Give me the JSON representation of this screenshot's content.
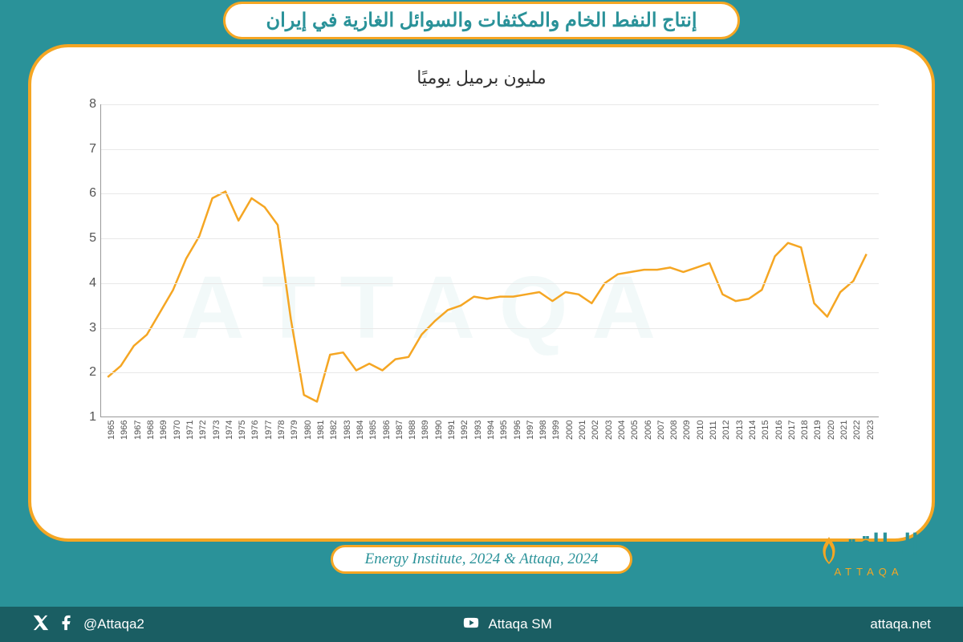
{
  "header": {
    "title": "إنتاج النفط الخام والمكثفات والسوائل الغازية في إيران"
  },
  "chart": {
    "type": "line",
    "subtitle": "مليون برميل يوميًا",
    "line_color": "#f5a623",
    "line_width": 2.5,
    "grid_color": "#e8e8e8",
    "axis_color": "#999999",
    "background_color": "#ffffff",
    "ylim": [
      1,
      8
    ],
    "yticks": [
      1,
      2,
      3,
      4,
      5,
      6,
      7,
      8
    ],
    "x_labels": [
      "1965",
      "1966",
      "1967",
      "1968",
      "1969",
      "1970",
      "1971",
      "1972",
      "1973",
      "1974",
      "1975",
      "1976",
      "1977",
      "1978",
      "1979",
      "1980",
      "1981",
      "1982",
      "1983",
      "1984",
      "1985",
      "1986",
      "1987",
      "1988",
      "1989",
      "1990",
      "1991",
      "1992",
      "1993",
      "1994",
      "1995",
      "1996",
      "1997",
      "1998",
      "1999",
      "2000",
      "2001",
      "2002",
      "2003",
      "2004",
      "2005",
      "2006",
      "2007",
      "2008",
      "2009",
      "2010",
      "2011",
      "2012",
      "2013",
      "2014",
      "2015",
      "2016",
      "2017",
      "2018",
      "2019",
      "2020",
      "2021",
      "2022",
      "2023"
    ],
    "values": [
      1.9,
      2.15,
      2.6,
      2.85,
      3.35,
      3.85,
      4.55,
      5.05,
      5.9,
      6.05,
      5.4,
      5.9,
      5.7,
      5.3,
      3.2,
      1.5,
      1.35,
      2.4,
      2.45,
      2.05,
      2.2,
      2.05,
      2.3,
      2.35,
      2.85,
      3.15,
      3.4,
      3.5,
      3.7,
      3.65,
      3.7,
      3.7,
      3.75,
      3.8,
      3.6,
      3.8,
      3.75,
      3.55,
      4.0,
      4.2,
      4.25,
      4.3,
      4.3,
      4.35,
      4.25,
      4.35,
      4.45,
      3.75,
      3.6,
      3.65,
      3.85,
      4.6,
      4.9,
      4.8,
      3.55,
      3.25,
      3.8,
      4.05,
      4.65
    ],
    "tick_fontsize": 16,
    "xtick_fontsize": 11,
    "subtitle_fontsize": 22
  },
  "watermark": "ATTAQA",
  "source": {
    "text": "Energy Institute, 2024 & Attaqa, 2024"
  },
  "logo": {
    "arabic": "الطاقة",
    "latin": "ATTAQA"
  },
  "footer": {
    "handle": "@Attaqa2",
    "youtube": "Attaqa SM",
    "site": "attaqa.net"
  },
  "colors": {
    "teal_bg": "#2a9299",
    "teal_dark": "#1a5e63",
    "accent": "#f5a623",
    "white": "#ffffff"
  }
}
